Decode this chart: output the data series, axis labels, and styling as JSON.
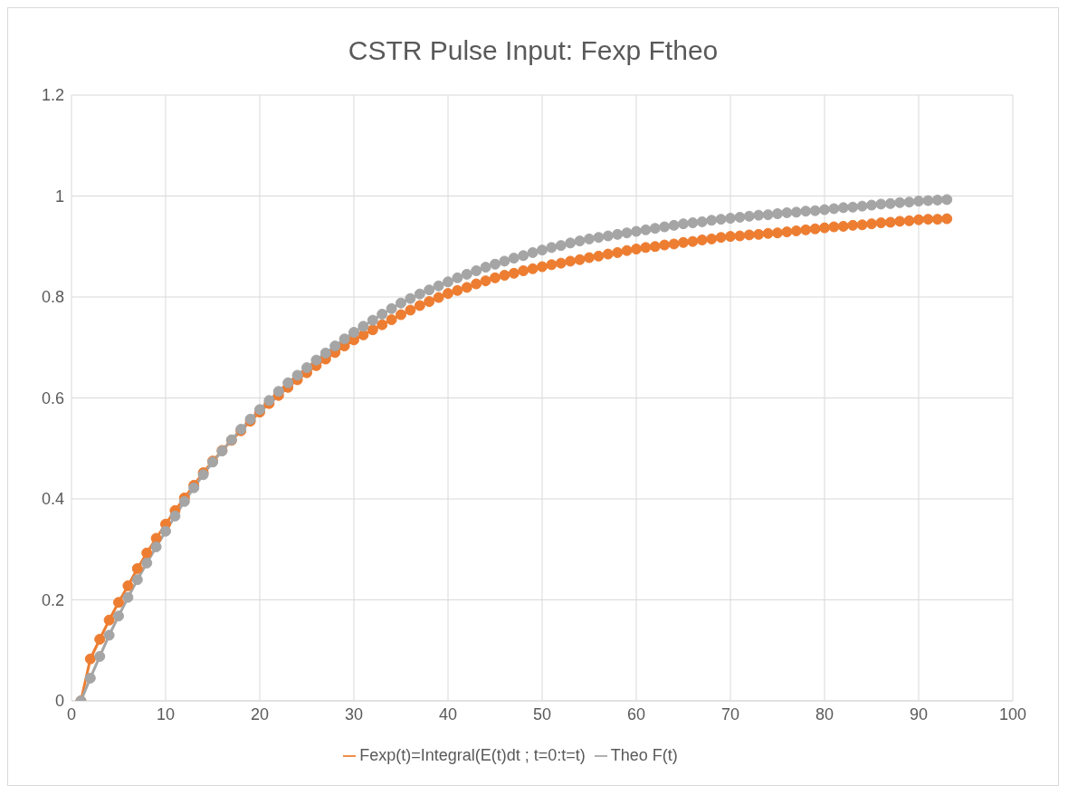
{
  "chart_data": {
    "type": "line",
    "title": "CSTR Pulse Input: Fexp Ftheo",
    "x": [
      1,
      2,
      3,
      4,
      5,
      6,
      7,
      8,
      9,
      10,
      11,
      12,
      13,
      14,
      15,
      16,
      17,
      18,
      19,
      20,
      21,
      22,
      23,
      24,
      25,
      26,
      27,
      28,
      29,
      30,
      31,
      32,
      33,
      34,
      35,
      36,
      37,
      38,
      39,
      40,
      41,
      42,
      43,
      44,
      45,
      46,
      47,
      48,
      49,
      50,
      51,
      52,
      53,
      54,
      55,
      56,
      57,
      58,
      59,
      60,
      61,
      62,
      63,
      64,
      65,
      66,
      67,
      68,
      69,
      70,
      71,
      72,
      73,
      74,
      75,
      76,
      77,
      78,
      79,
      80,
      81,
      82,
      83,
      84,
      85,
      86,
      87,
      88,
      89,
      90,
      91,
      92,
      93
    ],
    "series": [
      {
        "name": "Fexp(t)=Integral(E(t)dt ; t=0:t=t)",
        "color": "#ed7d31",
        "values": [
          0,
          0.083,
          0.122,
          0.16,
          0.195,
          0.228,
          0.262,
          0.293,
          0.322,
          0.35,
          0.377,
          0.402,
          0.427,
          0.452,
          0.475,
          0.496,
          0.516,
          0.535,
          0.554,
          0.572,
          0.589,
          0.605,
          0.621,
          0.636,
          0.65,
          0.664,
          0.677,
          0.69,
          0.703,
          0.715,
          0.725,
          0.735,
          0.745,
          0.755,
          0.765,
          0.774,
          0.783,
          0.791,
          0.799,
          0.807,
          0.813,
          0.819,
          0.826,
          0.832,
          0.838,
          0.843,
          0.847,
          0.852,
          0.856,
          0.86,
          0.864,
          0.867,
          0.871,
          0.874,
          0.878,
          0.881,
          0.885,
          0.888,
          0.892,
          0.895,
          0.898,
          0.9,
          0.903,
          0.905,
          0.908,
          0.91,
          0.913,
          0.915,
          0.918,
          0.92,
          0.921,
          0.923,
          0.924,
          0.926,
          0.927,
          0.929,
          0.931,
          0.933,
          0.935,
          0.937,
          0.939,
          0.94,
          0.942,
          0.943,
          0.945,
          0.947,
          0.948,
          0.95,
          0.951,
          0.953,
          0.954,
          0.954,
          0.955
        ]
      },
      {
        "name": "Theo F(t)",
        "color": "#a5a5a5",
        "values": [
          0,
          0.045,
          0.088,
          0.13,
          0.168,
          0.205,
          0.24,
          0.273,
          0.305,
          0.336,
          0.366,
          0.395,
          0.422,
          0.448,
          0.473,
          0.495,
          0.517,
          0.538,
          0.558,
          0.577,
          0.595,
          0.613,
          0.63,
          0.645,
          0.66,
          0.675,
          0.689,
          0.703,
          0.717,
          0.73,
          0.742,
          0.754,
          0.766,
          0.777,
          0.788,
          0.797,
          0.806,
          0.814,
          0.822,
          0.83,
          0.838,
          0.845,
          0.852,
          0.859,
          0.865,
          0.871,
          0.877,
          0.882,
          0.888,
          0.893,
          0.898,
          0.902,
          0.907,
          0.911,
          0.915,
          0.918,
          0.921,
          0.924,
          0.927,
          0.93,
          0.933,
          0.936,
          0.939,
          0.942,
          0.945,
          0.947,
          0.949,
          0.952,
          0.954,
          0.956,
          0.958,
          0.96,
          0.962,
          0.963,
          0.965,
          0.967,
          0.968,
          0.97,
          0.971,
          0.973,
          0.975,
          0.977,
          0.978,
          0.98,
          0.982,
          0.984,
          0.985,
          0.987,
          0.988,
          0.99,
          0.991,
          0.992,
          0.993
        ]
      }
    ],
    "xlim": [
      0,
      100
    ],
    "xticks": [
      0,
      10,
      20,
      30,
      40,
      50,
      60,
      70,
      80,
      90,
      100
    ],
    "ylim": [
      0,
      1.2
    ],
    "yticks": [
      0,
      0.2,
      0.4,
      0.6,
      0.8,
      1,
      1.2
    ],
    "grid": true,
    "legend": "bottom",
    "marker": "circle",
    "line_style": "solid"
  }
}
